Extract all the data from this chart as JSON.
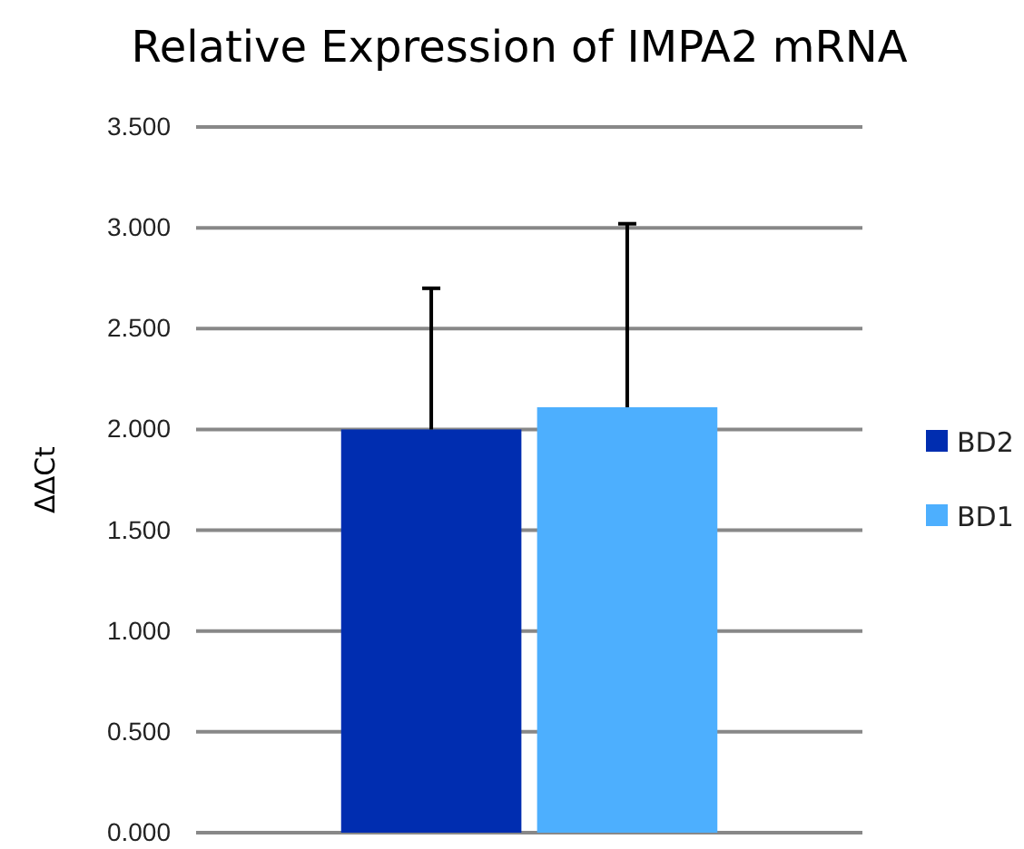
{
  "chart_data": {
    "type": "bar",
    "title": "Relative Expression of IMPA2 mRNA",
    "ylabel": "ΔΔCt",
    "categories": [
      null
    ],
    "series": [
      {
        "name": "BD2",
        "color": "#002db0",
        "values": [
          2.0
        ],
        "errors": [
          [
            2.0,
            2.7
          ]
        ]
      },
      {
        "name": "BD1",
        "color": "#4daffe",
        "values": [
          2.11
        ],
        "errors": [
          [
            2.11,
            3.02
          ]
        ]
      }
    ],
    "ylim": [
      0,
      3.5
    ],
    "yticks": [
      {
        "value": 0,
        "label": "0.000"
      },
      {
        "value": 0.5,
        "label": "0.500"
      },
      {
        "value": 1,
        "label": "1.000"
      },
      {
        "value": 1.5,
        "label": "1.500"
      },
      {
        "value": 2,
        "label": "2.000"
      },
      {
        "value": 2.5,
        "label": "2.500"
      },
      {
        "value": 3,
        "label": "3.000"
      },
      {
        "value": 3.5,
        "label": "3.500"
      }
    ],
    "grid": "y",
    "legend": "right"
  }
}
